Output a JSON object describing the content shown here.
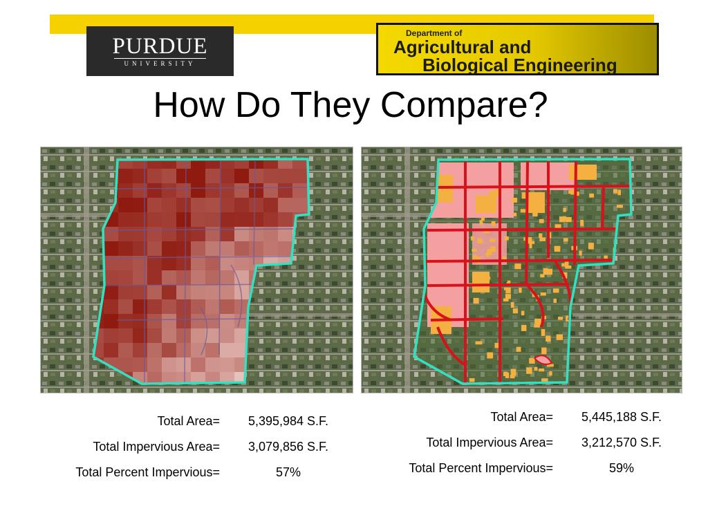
{
  "header": {
    "purdue_name": "PURDUE",
    "purdue_sub": "UNIVERSITY",
    "dept_prefix": "Department of",
    "dept_line1": "Agricultural and",
    "dept_line2": "Biological Engineering"
  },
  "slide": {
    "title": "How Do They Compare?"
  },
  "colors": {
    "accent_bar": "#f5d100",
    "boundary": "#33e0c0",
    "impervious_red": "#d8121c",
    "roof_orange": "#f4b040",
    "heat_dark": "#8e1a10"
  },
  "left": {
    "total_area_label": "Total Area=",
    "total_area_value": "5,395,984 S.F.",
    "impervious_label": "Total Impervious Area=",
    "impervious_value": "3,079,856 S.F.",
    "percent_label": "Total Percent Impervious=",
    "percent_value": "57%"
  },
  "right": {
    "total_area_label": "Total Area=",
    "total_area_value": "5,445,188 S.F.",
    "impervious_label": "Total Impervious Area=",
    "impervious_value": "3,212,570 S.F.",
    "percent_label": "Total Percent Impervious=",
    "percent_value": "59%"
  }
}
